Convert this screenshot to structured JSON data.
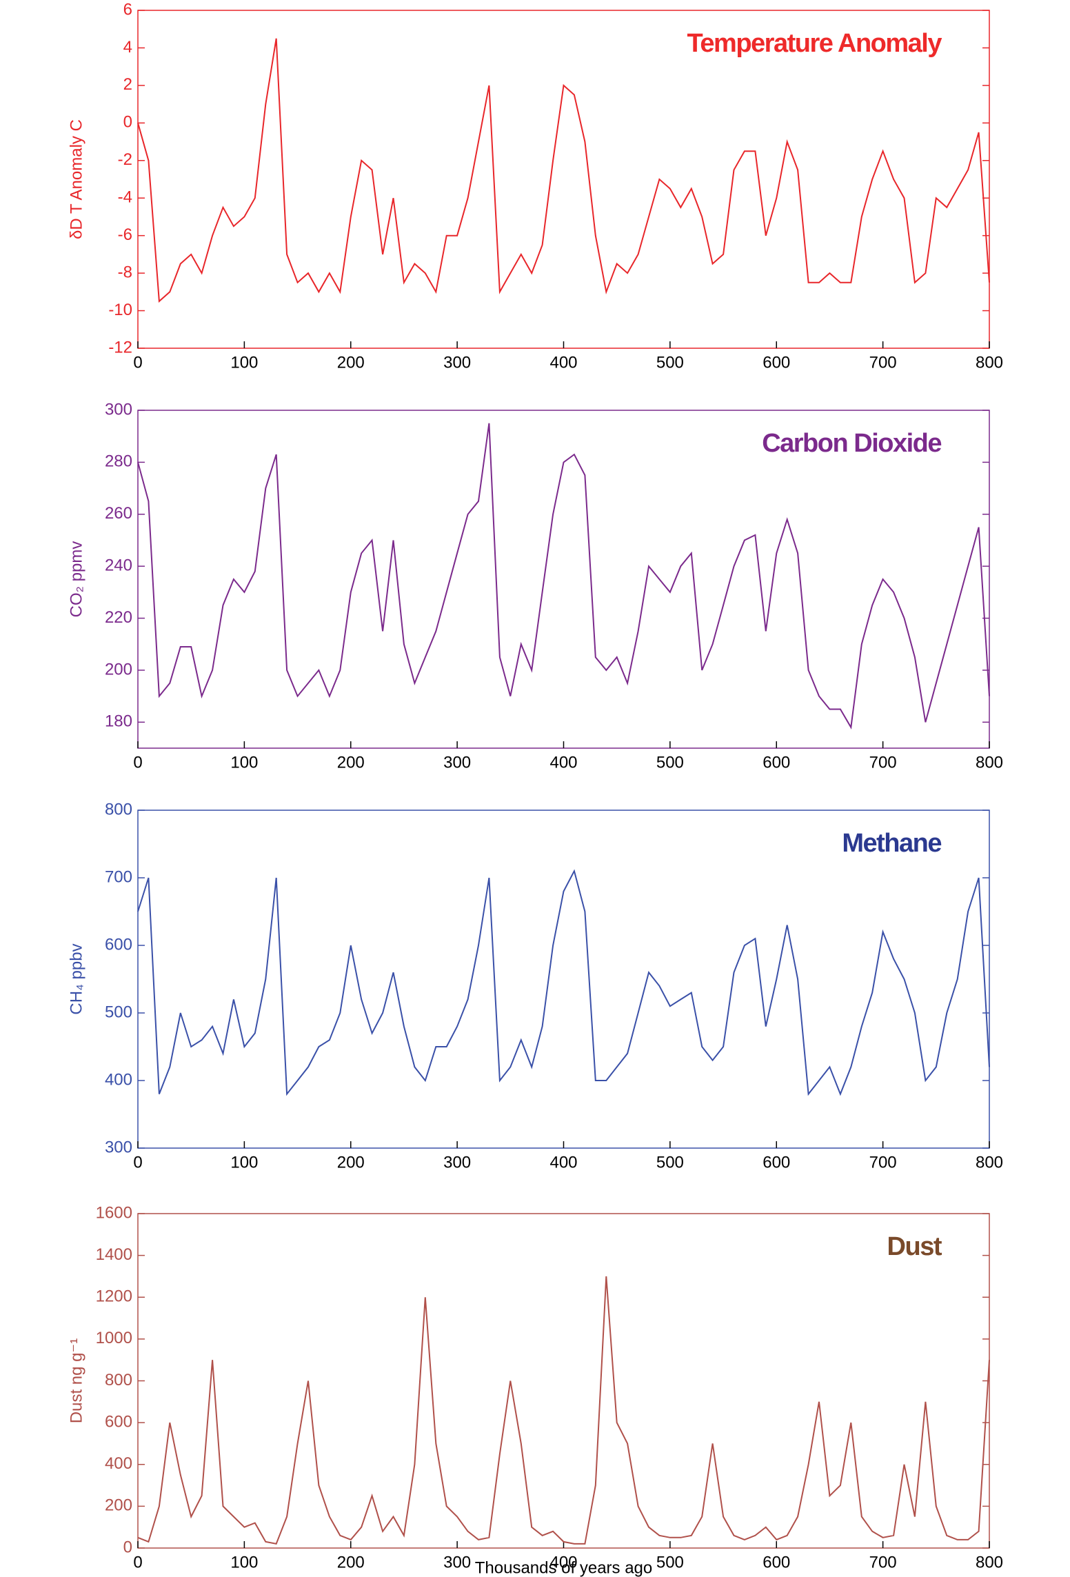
{
  "chart_data": [
    {
      "type": "line",
      "title": "Temperature Anomaly",
      "title_color": "#ee2a2a",
      "y_label": "δD T Anomaly C",
      "color": "#e8262a",
      "x": [
        0,
        10,
        20,
        30,
        40,
        50,
        60,
        70,
        80,
        90,
        100,
        110,
        120,
        130,
        140,
        150,
        160,
        170,
        180,
        190,
        200,
        210,
        220,
        230,
        240,
        250,
        260,
        270,
        280,
        290,
        300,
        310,
        320,
        330,
        340,
        350,
        360,
        370,
        380,
        390,
        400,
        410,
        420,
        430,
        440,
        450,
        460,
        470,
        480,
        490,
        500,
        510,
        520,
        530,
        540,
        550,
        560,
        570,
        580,
        590,
        600,
        610,
        620,
        630,
        640,
        650,
        660,
        670,
        680,
        690,
        700,
        710,
        720,
        730,
        740,
        750,
        760,
        770,
        780,
        790,
        800
      ],
      "values": [
        0,
        -2,
        -9.5,
        -9,
        -7.5,
        -7,
        -8,
        -6,
        -4.5,
        -5.5,
        -5,
        -4,
        1,
        4.5,
        -7,
        -8.5,
        -8,
        -9,
        -8,
        -9,
        -5,
        -2,
        -2.5,
        -7,
        -4,
        -8.5,
        -7.5,
        -8,
        -9,
        -6,
        -6,
        -4,
        -1,
        2,
        -9,
        -8,
        -7,
        -8,
        -6.5,
        -2,
        2,
        1.5,
        -1,
        -6,
        -9,
        -7.5,
        -8,
        -7,
        -5,
        -3,
        -3.5,
        -4.5,
        -3.5,
        -5,
        -7.5,
        -7,
        -2.5,
        -1.5,
        -1.5,
        -6,
        -4,
        -1,
        -2.5,
        -8.5,
        -8.5,
        -8,
        -8.5,
        -8.5,
        -5,
        -3,
        -1.5,
        -3,
        -4,
        -8.5,
        -8,
        -4,
        -4.5,
        -3.5,
        -2.5,
        -0.5,
        -8.5
      ],
      "xlim": [
        0,
        800
      ],
      "xticks": [
        0,
        100,
        200,
        300,
        400,
        500,
        600,
        700,
        800
      ],
      "ylim": [
        -12,
        6
      ],
      "yticks": [
        -12,
        -10,
        -8,
        -6,
        -4,
        -2,
        0,
        2,
        4,
        6
      ]
    },
    {
      "type": "line",
      "title": "Carbon Dioxide",
      "title_color": "#7b2a8c",
      "y_label": "CO₂ ppmv",
      "color": "#7b2a8c",
      "x": [
        0,
        10,
        20,
        30,
        40,
        50,
        60,
        70,
        80,
        90,
        100,
        110,
        120,
        130,
        140,
        150,
        160,
        170,
        180,
        190,
        200,
        210,
        220,
        230,
        240,
        250,
        260,
        270,
        280,
        290,
        300,
        310,
        320,
        330,
        340,
        350,
        360,
        370,
        380,
        390,
        400,
        410,
        420,
        430,
        440,
        450,
        460,
        470,
        480,
        490,
        500,
        510,
        520,
        530,
        540,
        550,
        560,
        570,
        580,
        590,
        600,
        610,
        620,
        630,
        640,
        650,
        660,
        670,
        680,
        690,
        700,
        710,
        720,
        730,
        740,
        750,
        760,
        770,
        780,
        790,
        800
      ],
      "values": [
        280,
        265,
        190,
        195,
        209,
        209,
        190,
        200,
        225,
        235,
        230,
        238,
        270,
        283,
        200,
        190,
        195,
        200,
        190,
        200,
        230,
        245,
        250,
        215,
        250,
        210,
        195,
        205,
        215,
        230,
        245,
        260,
        265,
        295,
        205,
        190,
        210,
        200,
        230,
        260,
        280,
        283,
        275,
        205,
        200,
        205,
        195,
        215,
        240,
        235,
        230,
        240,
        245,
        200,
        210,
        225,
        240,
        250,
        252,
        215,
        245,
        258,
        245,
        200,
        190,
        185,
        185,
        178,
        210,
        225,
        235,
        230,
        220,
        205,
        180,
        195,
        210,
        225,
        240,
        255,
        190
      ],
      "xlim": [
        0,
        800
      ],
      "xticks": [
        0,
        100,
        200,
        300,
        400,
        500,
        600,
        700,
        800
      ],
      "ylim": [
        170,
        300
      ],
      "yticks": [
        180,
        200,
        220,
        240,
        260,
        280,
        300
      ]
    },
    {
      "type": "line",
      "title": "Methane",
      "title_color": "#2b3990",
      "y_label": "CH₄ ppbv",
      "color": "#3a50a8",
      "x": [
        0,
        10,
        20,
        30,
        40,
        50,
        60,
        70,
        80,
        90,
        100,
        110,
        120,
        130,
        140,
        150,
        160,
        170,
        180,
        190,
        200,
        210,
        220,
        230,
        240,
        250,
        260,
        270,
        280,
        290,
        300,
        310,
        320,
        330,
        340,
        350,
        360,
        370,
        380,
        390,
        400,
        410,
        420,
        430,
        440,
        450,
        460,
        470,
        480,
        490,
        500,
        510,
        520,
        530,
        540,
        550,
        560,
        570,
        580,
        590,
        600,
        610,
        620,
        630,
        640,
        650,
        660,
        670,
        680,
        690,
        700,
        710,
        720,
        730,
        740,
        750,
        760,
        770,
        780,
        790,
        800
      ],
      "values": [
        650,
        700,
        380,
        420,
        500,
        450,
        460,
        480,
        440,
        520,
        450,
        470,
        550,
        700,
        380,
        400,
        420,
        450,
        460,
        500,
        600,
        520,
        470,
        500,
        560,
        480,
        420,
        400,
        450,
        450,
        480,
        520,
        600,
        700,
        400,
        420,
        460,
        420,
        480,
        600,
        680,
        710,
        650,
        400,
        400,
        420,
        440,
        500,
        560,
        540,
        510,
        520,
        530,
        450,
        430,
        450,
        560,
        600,
        610,
        480,
        550,
        630,
        550,
        380,
        400,
        420,
        380,
        420,
        480,
        530,
        620,
        580,
        550,
        500,
        400,
        420,
        500,
        550,
        650,
        700,
        420
      ],
      "xlim": [
        0,
        800
      ],
      "xticks": [
        0,
        100,
        200,
        300,
        400,
        500,
        600,
        700,
        800
      ],
      "ylim": [
        300,
        800
      ],
      "yticks": [
        300,
        400,
        500,
        600,
        700,
        800
      ]
    },
    {
      "type": "line",
      "title": "Dust",
      "title_color": "#7a4a2a",
      "y_label": "Dust ng g⁻¹",
      "x_label": "Thousands of years ago",
      "color": "#b0504a",
      "x": [
        0,
        10,
        20,
        30,
        40,
        50,
        60,
        70,
        80,
        90,
        100,
        110,
        120,
        130,
        140,
        150,
        160,
        170,
        180,
        190,
        200,
        210,
        220,
        230,
        240,
        250,
        260,
        270,
        280,
        290,
        300,
        310,
        320,
        330,
        340,
        350,
        360,
        370,
        380,
        390,
        400,
        410,
        420,
        430,
        440,
        450,
        460,
        470,
        480,
        490,
        500,
        510,
        520,
        530,
        540,
        550,
        560,
        570,
        580,
        590,
        600,
        610,
        620,
        630,
        640,
        650,
        660,
        670,
        680,
        690,
        700,
        710,
        720,
        730,
        740,
        750,
        760,
        770,
        780,
        790,
        800
      ],
      "values": [
        50,
        30,
        200,
        600,
        350,
        150,
        250,
        900,
        200,
        150,
        100,
        120,
        30,
        20,
        150,
        500,
        800,
        300,
        150,
        60,
        40,
        100,
        250,
        80,
        150,
        60,
        400,
        1200,
        500,
        200,
        150,
        80,
        40,
        50,
        450,
        800,
        500,
        100,
        60,
        80,
        30,
        20,
        20,
        300,
        1300,
        600,
        500,
        200,
        100,
        60,
        50,
        50,
        60,
        150,
        500,
        150,
        60,
        40,
        60,
        100,
        40,
        60,
        150,
        400,
        700,
        250,
        300,
        600,
        150,
        80,
        50,
        60,
        400,
        150,
        700,
        200,
        60,
        40,
        40,
        80,
        900
      ],
      "xlim": [
        0,
        800
      ],
      "xticks": [
        0,
        100,
        200,
        300,
        400,
        500,
        600,
        700,
        800
      ],
      "ylim": [
        0,
        1600
      ],
      "yticks": [
        0,
        200,
        400,
        600,
        800,
        1000,
        1200,
        1400,
        1600
      ]
    }
  ]
}
